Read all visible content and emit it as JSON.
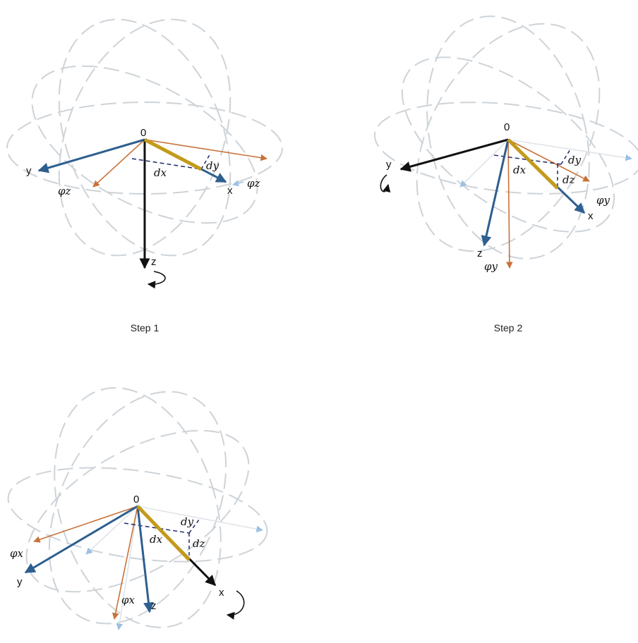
{
  "panels": [
    {
      "id": "step1",
      "caption": "Step 1",
      "labels": {
        "origin": "0",
        "x": "x",
        "y": "y",
        "z": "z",
        "dx": "dx",
        "dy": "dy",
        "phi_1": "φz",
        "phi_2": "φz"
      }
    },
    {
      "id": "step2",
      "caption": "Step 2",
      "labels": {
        "origin": "0",
        "x": "x",
        "y": "y",
        "z": "z",
        "dx": "dx",
        "dy": "dy",
        "dz": "dz",
        "phi_1": "φy",
        "phi_2": "φy"
      }
    },
    {
      "id": "step3",
      "caption": "",
      "labels": {
        "origin": "0",
        "x": "x",
        "y": "y",
        "z": "z",
        "dx": "dx",
        "dy": "dy",
        "dz": "dz",
        "phi_1": "φx",
        "phi_2": "φx"
      }
    }
  ],
  "colors": {
    "ring": "#cdd3d8",
    "axis_blue": "#2e5f8f",
    "axis_black": "#111111",
    "axis_orange": "#c8723a",
    "axis_light": "#9cc0e4",
    "bar_gold": "#c49a1a",
    "dashed_navy": "#1f2a6b"
  }
}
